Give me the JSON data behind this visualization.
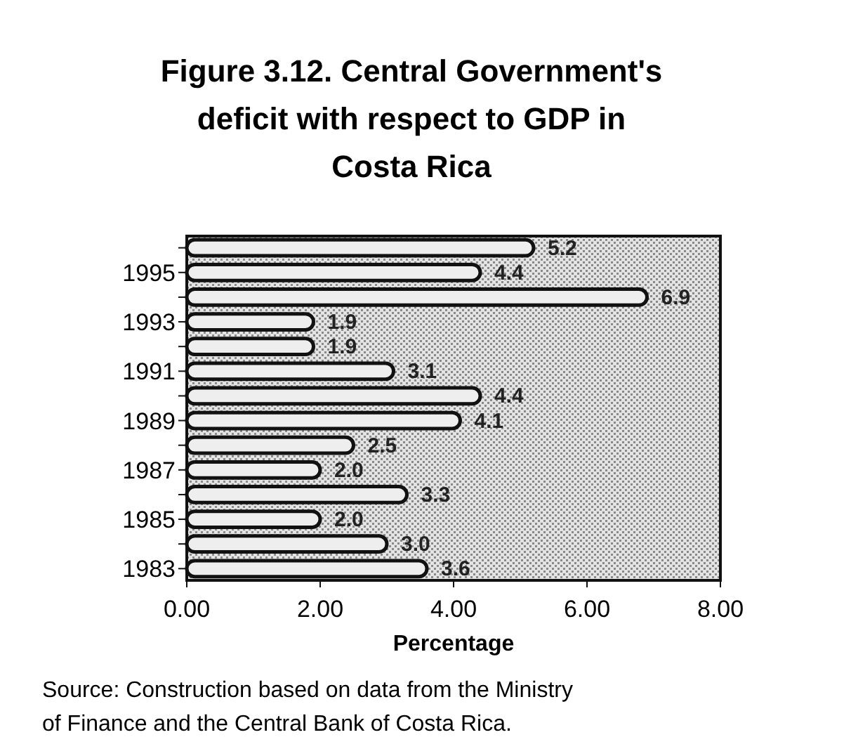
{
  "chart_data": {
    "type": "bar",
    "orientation": "horizontal",
    "title": "Figure 3.12. Central Government's deficit with respect to GDP in Costa Rica",
    "xlabel": "Percentage",
    "categories": [
      null,
      "1995",
      null,
      "1993",
      null,
      "1991",
      null,
      "1989",
      null,
      "1987",
      null,
      "1985",
      null,
      "1983"
    ],
    "values": [
      5.2,
      4.4,
      6.9,
      1.9,
      1.9,
      3.1,
      4.4,
      4.1,
      2.5,
      2.0,
      3.3,
      2.0,
      3.0,
      3.6
    ],
    "value_labels": [
      "5.2",
      "4.4",
      "6.9",
      "1.9",
      "1.9",
      "3.1",
      "4.4",
      "4.1",
      "2.5",
      "2.0",
      "3.3",
      "2.0",
      "3.0",
      "3.6"
    ],
    "color": "#eeeeee",
    "xlim": [
      0,
      8
    ],
    "xticks": [
      {
        "value": 0,
        "label": "0.00"
      },
      {
        "value": 2,
        "label": "2.00"
      },
      {
        "value": 4,
        "label": "4.00"
      },
      {
        "value": 6,
        "label": "6.00"
      },
      {
        "value": 8,
        "label": "8.00"
      }
    ],
    "grid": false,
    "annotations": [
      "Source: Construction based on data from the Ministry of Finance and the Central Bank of Costa Rica."
    ]
  }
}
